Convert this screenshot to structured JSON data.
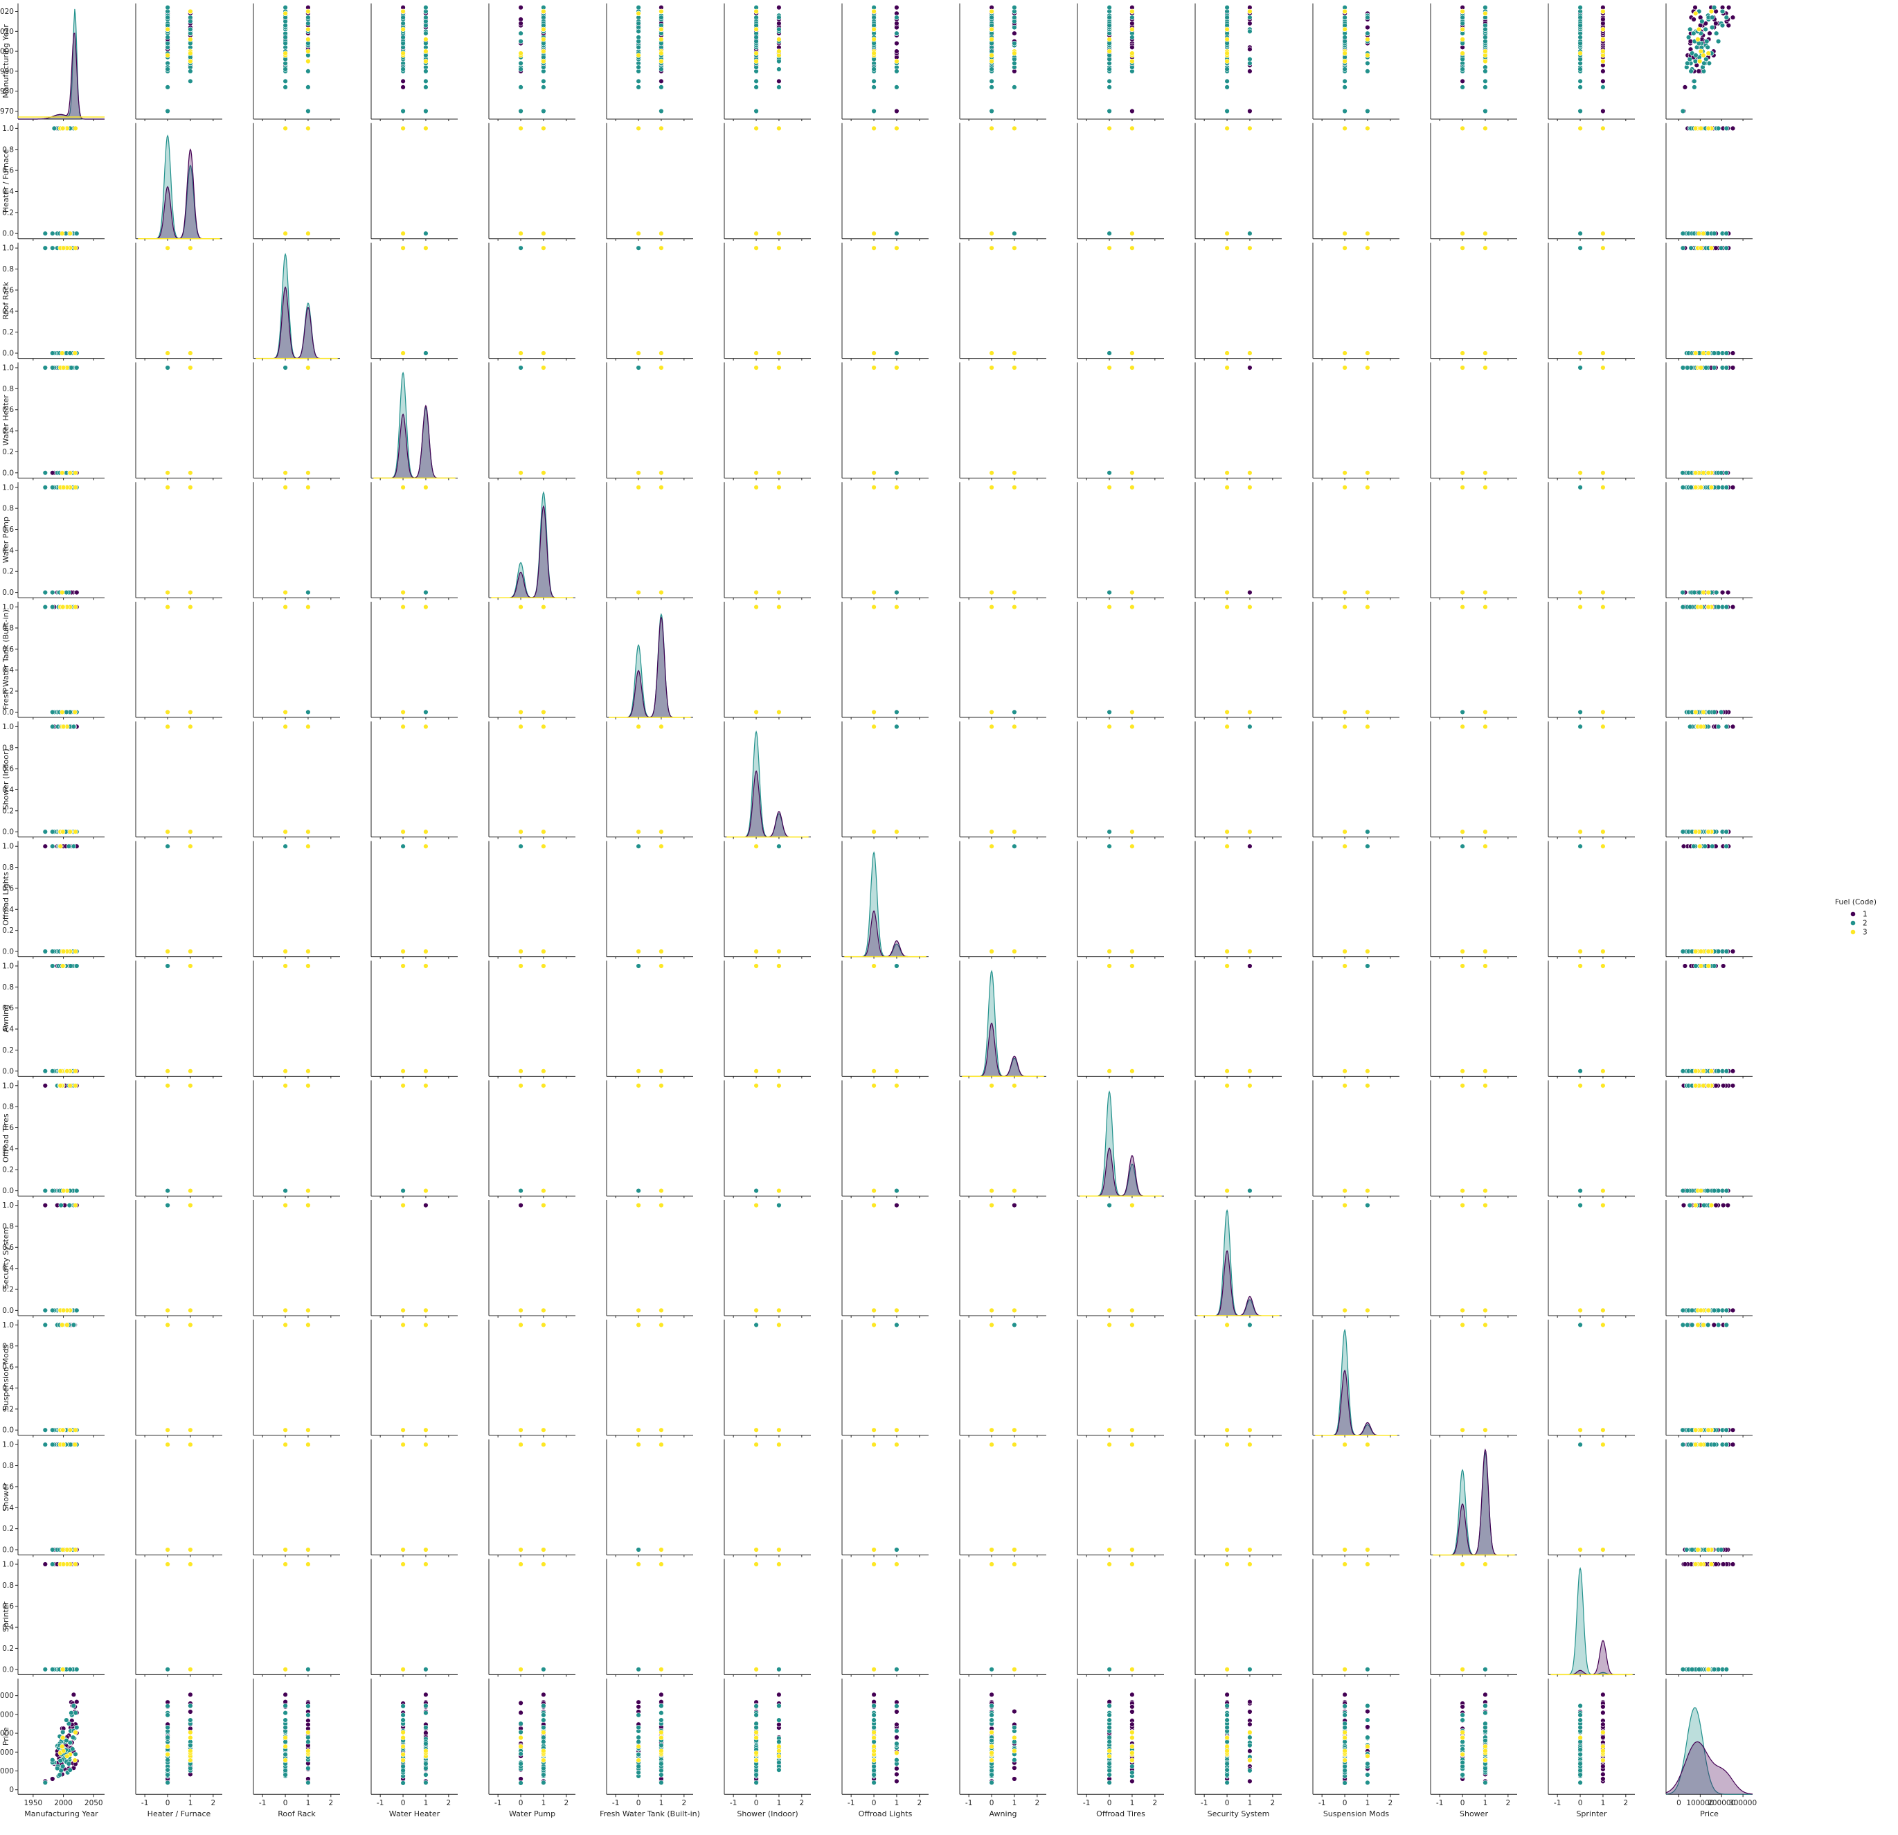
{
  "chart_data": {
    "type": "scatter",
    "variables": [
      "Manufacturing Year",
      "Heater / Furnace",
      "Roof Rack",
      "Water Heater",
      "Water Pump",
      "Fresh Water Tank (Built-in)",
      "Shower (Indoor)",
      "Offroad Lights",
      "Awning",
      "Offroad Tires",
      "Security System",
      "Suspension Mods",
      "Shower",
      "Sprinter",
      "Price"
    ],
    "hue": {
      "title": "Fuel (Code)",
      "levels": [
        "1",
        "2",
        "3"
      ],
      "colors": [
        "#440154",
        "#21918c",
        "#fde725"
      ]
    },
    "axes": {
      "year": {
        "row_range": [
          1966,
          2024
        ],
        "row_ticks": [
          1970,
          1980,
          1990,
          2000,
          2010,
          2020
        ],
        "col_range": [
          1925,
          2068
        ],
        "col_ticks": [
          1950,
          2000,
          2050
        ]
      },
      "binary": {
        "row_range": [
          -0.05,
          1.05
        ],
        "row_ticks": [
          0.0,
          0.2,
          0.4,
          0.6,
          0.8,
          1.0
        ],
        "row_tick_labels": [
          "0.0",
          "0.2",
          "0.4",
          "0.6",
          "0.8",
          "1.0"
        ],
        "col_range": [
          -1.4,
          2.4
        ],
        "col_ticks": [
          -1,
          0,
          1,
          2
        ]
      },
      "price": {
        "row_range": [
          -12000,
          295000
        ],
        "row_ticks": [
          0,
          50000,
          100000,
          150000,
          200000,
          250000
        ],
        "col_range": [
          -60000,
          345000
        ],
        "col_ticks": [
          0,
          100000,
          200000,
          300000
        ],
        "col_tick_labels": [
          "0",
          "100000",
          "200000",
          "300000"
        ]
      }
    },
    "binary_kde_peaks": [
      {
        "variable": "Heater / Furnace",
        "hue_1": [
          0.49,
          0.84
        ],
        "hue_2": [
          0.97,
          0.69
        ]
      },
      {
        "variable": "Roof Rack",
        "hue_1": [
          0.67,
          0.48
        ],
        "hue_2": [
          0.98,
          0.52
        ]
      },
      {
        "variable": "Water Heater",
        "hue_1": [
          0.6,
          0.68
        ],
        "hue_2": [
          0.99,
          0.66
        ]
      },
      {
        "variable": "Water Pump",
        "hue_1": [
          0.24,
          0.86
        ],
        "hue_2": [
          0.33,
          0.99
        ]
      },
      {
        "variable": "Fresh Water Tank (Built-in)",
        "hue_1": [
          0.44,
          0.94
        ],
        "hue_2": [
          0.68,
          0.97
        ]
      },
      {
        "variable": "Shower (Indoor)",
        "hue_1": [
          0.62,
          0.24
        ],
        "hue_2": [
          0.99,
          0.22
        ]
      },
      {
        "variable": "Offroad Lights",
        "hue_1": [
          0.43,
          0.15
        ],
        "hue_2": [
          0.98,
          0.12
        ]
      },
      {
        "variable": "Awning",
        "hue_1": [
          0.5,
          0.19
        ],
        "hue_2": [
          0.99,
          0.17
        ]
      },
      {
        "variable": "Offroad Tires",
        "hue_1": [
          0.45,
          0.38
        ],
        "hue_2": [
          0.98,
          0.3
        ]
      },
      {
        "variable": "Security System",
        "hue_1": [
          0.61,
          0.18
        ],
        "hue_2": [
          0.99,
          0.15
        ]
      },
      {
        "variable": "Suspension Mods",
        "hue_1": [
          0.61,
          0.12
        ],
        "hue_2": [
          0.99,
          0.1
        ]
      },
      {
        "variable": "Shower",
        "hue_1": [
          0.48,
          0.99
        ],
        "hue_2": [
          0.8,
          0.96
        ]
      },
      {
        "variable": "Sprinter",
        "hue_1": [
          0.04,
          0.32
        ],
        "hue_2": [
          1.0,
          0.02
        ]
      }
    ]
  }
}
